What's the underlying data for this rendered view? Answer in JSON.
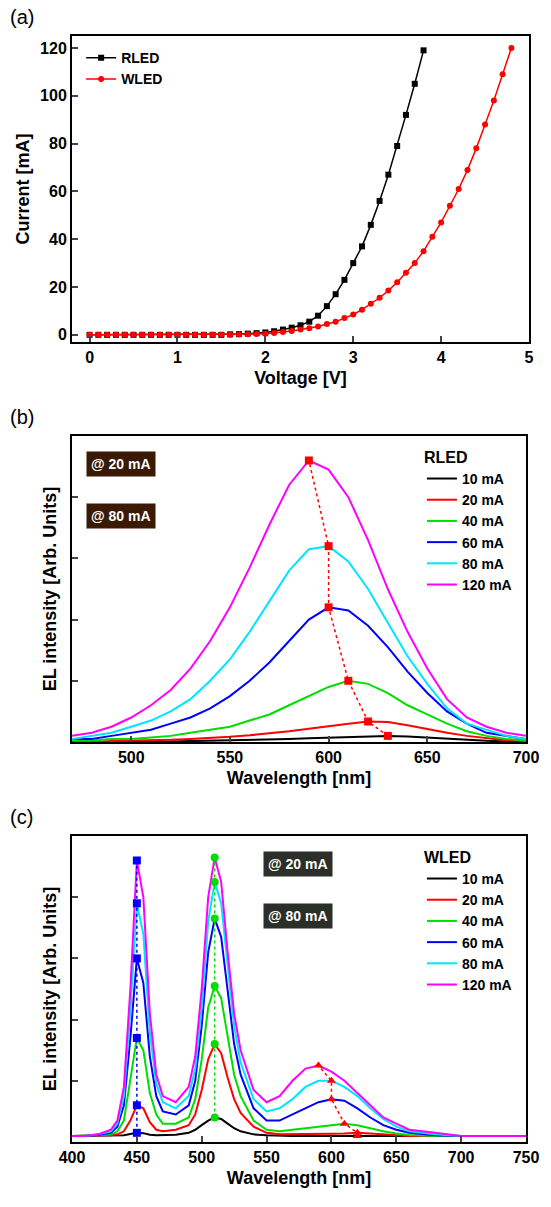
{
  "chart_data": [
    {
      "type": "line",
      "panel": "(a)",
      "x_label": "Voltage [V]",
      "y_label": "Current [mA]",
      "xlim": [
        -0.2,
        5
      ],
      "xticks": [
        0,
        1,
        2,
        3,
        4,
        5
      ],
      "ylim": [
        -3,
        125
      ],
      "yticks": [
        0,
        20,
        40,
        60,
        80,
        100,
        120
      ],
      "legend": "upper left",
      "series": [
        {
          "name": "RLED",
          "color": "#000000",
          "marker": "square",
          "line_style": "solid",
          "x": [
            0,
            0.1,
            0.2,
            0.3,
            0.4,
            0.5,
            0.6,
            0.7,
            0.8,
            0.9,
            1,
            1.1,
            1.2,
            1.3,
            1.4,
            1.5,
            1.6,
            1.7,
            1.8,
            1.9,
            2,
            2.1,
            2.2,
            2.3,
            2.4,
            2.5,
            2.6,
            2.7,
            2.8,
            2.9,
            3,
            3.1,
            3.2,
            3.3,
            3.4,
            3.5,
            3.6,
            3.7,
            3.8
          ],
          "values": [
            0,
            0,
            0,
            0,
            0,
            0,
            0,
            0,
            0,
            0,
            0,
            0,
            0,
            0,
            0,
            0,
            0.2,
            0.3,
            0.5,
            0.7,
            1,
            1.5,
            2.2,
            3,
            4,
            5.5,
            8,
            12,
            17,
            23,
            30,
            37,
            46,
            56,
            67,
            79,
            92,
            105,
            119
          ]
        },
        {
          "name": "WLED",
          "color": "#ff0000",
          "marker": "circle",
          "line_style": "solid",
          "x": [
            0,
            0.1,
            0.2,
            0.3,
            0.4,
            0.5,
            0.6,
            0.7,
            0.8,
            0.9,
            1,
            1.1,
            1.2,
            1.3,
            1.4,
            1.5,
            1.6,
            1.7,
            1.8,
            1.9,
            2,
            2.1,
            2.2,
            2.3,
            2.4,
            2.5,
            2.6,
            2.7,
            2.8,
            2.9,
            3,
            3.1,
            3.2,
            3.3,
            3.4,
            3.5,
            3.6,
            3.7,
            3.8,
            3.9,
            4,
            4.1,
            4.2,
            4.3,
            4.4,
            4.5,
            4.6,
            4.7,
            4.8
          ],
          "values": [
            0,
            0,
            0,
            0,
            0,
            0,
            0,
            0,
            0,
            0,
            0,
            0,
            0,
            0,
            0,
            0,
            0,
            0.1,
            0.2,
            0.3,
            0.5,
            0.8,
            1.2,
            1.6,
            2.2,
            2.8,
            3.5,
            4.5,
            5.5,
            7,
            8.5,
            10.5,
            13,
            15.5,
            18.5,
            22,
            26,
            30,
            35,
            41,
            47,
            54,
            61,
            69,
            78,
            88,
            98,
            109,
            120
          ]
        }
      ]
    },
    {
      "type": "line",
      "panel": "(b)",
      "x_label": "Wavelength [nm]",
      "y_label": "EL intensity [Arb. Units]",
      "xlim": [
        470,
        700
      ],
      "xticks": [
        500,
        550,
        600,
        650,
        700
      ],
      "ylim": [
        0,
        100
      ],
      "yticks": [
        0,
        20,
        40,
        60,
        80,
        100
      ],
      "tick_labels": "x",
      "legend": "upper right",
      "legend_title": "RLED",
      "annotations": [
        {
          "text": "@ 20 mA"
        },
        {
          "text": "@ 80 mA"
        }
      ],
      "x": [
        470,
        480,
        490,
        500,
        510,
        520,
        530,
        540,
        550,
        560,
        570,
        580,
        590,
        600,
        610,
        620,
        630,
        640,
        650,
        660,
        670,
        680,
        690,
        700
      ],
      "series": [
        {
          "name": "10 mA",
          "color": "#000000",
          "line_style": "solid",
          "values": [
            0,
            0,
            0,
            0,
            0.1,
            0.2,
            0.3,
            0.4,
            0.5,
            0.6,
            0.8,
            1,
            1.2,
            1.4,
            1.7,
            1.9,
            2,
            1.8,
            1.4,
            1,
            0.7,
            0.4,
            0.2,
            0.1
          ]
        },
        {
          "name": "20 mA",
          "color": "#ff0000",
          "line_style": "solid",
          "values": [
            0,
            0,
            0.3,
            0.4,
            0.5,
            0.7,
            1,
            1.3,
            1.7,
            2.2,
            2.8,
            3.5,
            4.3,
            5.2,
            6,
            6.7,
            6.5,
            5.5,
            4.2,
            3,
            2,
            1.2,
            0.6,
            0.3
          ]
        },
        {
          "name": "40 mA",
          "color": "#00dd00",
          "line_style": "solid",
          "values": [
            0.5,
            0.5,
            1,
            1,
            1.5,
            2,
            3,
            4,
            5,
            7,
            9,
            12,
            15,
            18,
            20,
            19,
            16,
            12,
            9,
            6,
            3.5,
            2,
            1,
            0.5
          ]
        },
        {
          "name": "60 mA",
          "color": "#0000ff",
          "line_style": "solid",
          "values": [
            1,
            1,
            2,
            3,
            4,
            6,
            8,
            11,
            15,
            20,
            26,
            33,
            40,
            44,
            43,
            38,
            31,
            23,
            16,
            10,
            6,
            3,
            2,
            1
          ]
        },
        {
          "name": "80 mA",
          "color": "#00e5ff",
          "line_style": "solid",
          "values": [
            1,
            2,
            3,
            5,
            7,
            10,
            14,
            20,
            27,
            36,
            46,
            56,
            63,
            64,
            59,
            50,
            39,
            28,
            19,
            11,
            6,
            4,
            2,
            1
          ]
        },
        {
          "name": "120 mA",
          "color": "#ff00ff",
          "line_style": "solid",
          "values": [
            2,
            3,
            5,
            8,
            12,
            17,
            24,
            33,
            44,
            57,
            71,
            84,
            92,
            89,
            80,
            66,
            50,
            36,
            24,
            14,
            8,
            5,
            3,
            2
          ]
        }
      ],
      "peaks": [
        {
          "color": "#ff0000",
          "marker": "square",
          "line_style": "dotted",
          "x": [
            630,
            620,
            610,
            600,
            600,
            590
          ],
          "values": [
            2,
            6.7,
            20,
            44,
            64,
            92
          ]
        }
      ]
    },
    {
      "type": "line",
      "panel": "(c)",
      "x_label": "Wavelength [nm]",
      "y_label": "EL intensity [Arb. Units]",
      "xlim": [
        400,
        750
      ],
      "xticks": [
        400,
        450,
        500,
        550,
        600,
        650,
        700,
        750
      ],
      "ylim": [
        0,
        100
      ],
      "yticks": [
        0,
        20,
        40,
        60,
        80,
        100
      ],
      "tick_labels": "x",
      "legend": "upper right",
      "legend_title": "WLED",
      "annotations": [
        {
          "text": "@ 20 mA"
        },
        {
          "text": "@ 80 mA"
        }
      ],
      "x": [
        400,
        410,
        420,
        430,
        435,
        440,
        445,
        450,
        455,
        460,
        465,
        470,
        480,
        490,
        495,
        500,
        505,
        510,
        515,
        520,
        525,
        530,
        540,
        550,
        560,
        570,
        580,
        590,
        600,
        610,
        620,
        630,
        640,
        650,
        660,
        680,
        700,
        725,
        750
      ],
      "series": [
        {
          "name": "10 mA",
          "color": "#000000",
          "line_style": "solid",
          "values": [
            2,
            2,
            2,
            2,
            2,
            2.2,
            2.6,
            3,
            2.9,
            2.4,
            2.2,
            2.2,
            2.4,
            3,
            4,
            5.5,
            7,
            8,
            7.5,
            6,
            4.5,
            3.5,
            2.5,
            2.2,
            2,
            2,
            2,
            2,
            2,
            2,
            2,
            2,
            2,
            2,
            2,
            2,
            2,
            2,
            2
          ]
        },
        {
          "name": "20 mA",
          "color": "#ff0000",
          "line_style": "solid",
          "values": [
            2,
            2,
            2,
            2.2,
            2.5,
            3.5,
            7,
            12,
            11,
            6.5,
            4,
            3.5,
            4,
            5.5,
            9,
            17,
            27,
            32,
            29,
            21,
            14,
            9.5,
            5,
            3,
            2.5,
            2.5,
            2.5,
            2.6,
            2.7,
            2.8,
            3,
            2.8,
            2.5,
            2.2,
            2,
            2,
            2,
            2,
            2
          ]
        },
        {
          "name": "40 mA",
          "color": "#00dd00",
          "line_style": "solid",
          "values": [
            2,
            2,
            2.2,
            2.5,
            3.5,
            7,
            20,
            34,
            30,
            16,
            9,
            6,
            6,
            8,
            14,
            27,
            44,
            51,
            47,
            34,
            22,
            15,
            7,
            4,
            3.5,
            4,
            4.5,
            5,
            5.5,
            6,
            5.5,
            4.5,
            3.5,
            2.8,
            2.3,
            2,
            2,
            2,
            2
          ]
        },
        {
          "name": "60 mA",
          "color": "#0000ff",
          "line_style": "solid",
          "values": [
            2,
            2,
            2.3,
            3,
            5,
            12,
            34,
            60,
            52,
            28,
            15,
            10,
            9,
            12,
            20,
            38,
            62,
            73,
            67,
            49,
            32,
            22,
            11,
            7,
            7,
            9,
            11,
            13,
            14,
            13.5,
            11,
            8,
            5.5,
            4,
            3,
            2.2,
            2,
            2,
            2
          ]
        },
        {
          "name": "80 mA",
          "color": "#00e5ff",
          "line_style": "solid",
          "values": [
            2,
            2,
            2.5,
            3.5,
            6,
            15,
            43,
            78,
            68,
            36,
            19,
            13,
            11,
            15,
            24,
            44,
            72,
            85,
            78,
            57,
            38,
            26,
            14,
            10,
            11,
            14,
            18,
            20,
            20,
            18,
            15,
            11,
            7.5,
            5,
            3.5,
            2.5,
            2,
            2,
            2
          ]
        },
        {
          "name": "120 mA",
          "color": "#ff00ff",
          "line_style": "solid",
          "values": [
            2,
            2,
            2.5,
            4,
            7,
            18,
            50,
            92,
            80,
            42,
            22,
            15,
            13,
            18,
            28,
            50,
            80,
            93,
            85,
            62,
            42,
            30,
            17,
            13,
            15,
            20,
            24,
            25,
            23,
            20,
            16,
            12,
            8,
            6,
            4,
            3,
            2,
            2,
            2
          ]
        }
      ],
      "peaks": [
        {
          "color": "#0000ff",
          "marker": "square",
          "line_style": "dotted",
          "x": [
            450,
            450,
            450,
            450,
            450,
            450
          ],
          "values": [
            3,
            12,
            34,
            60,
            78,
            92
          ]
        },
        {
          "color": "#00dd00",
          "marker": "circle",
          "line_style": "dotted",
          "x": [
            510,
            510,
            510,
            510,
            510,
            510
          ],
          "values": [
            8,
            32,
            51,
            73,
            85,
            93
          ]
        },
        {
          "color": "#ff0000",
          "marker": "triangle",
          "line_style": "dotted",
          "x": [
            620,
            620,
            610,
            600,
            600,
            590
          ],
          "values": [
            2,
            3,
            6,
            14,
            20,
            25
          ]
        }
      ]
    }
  ]
}
